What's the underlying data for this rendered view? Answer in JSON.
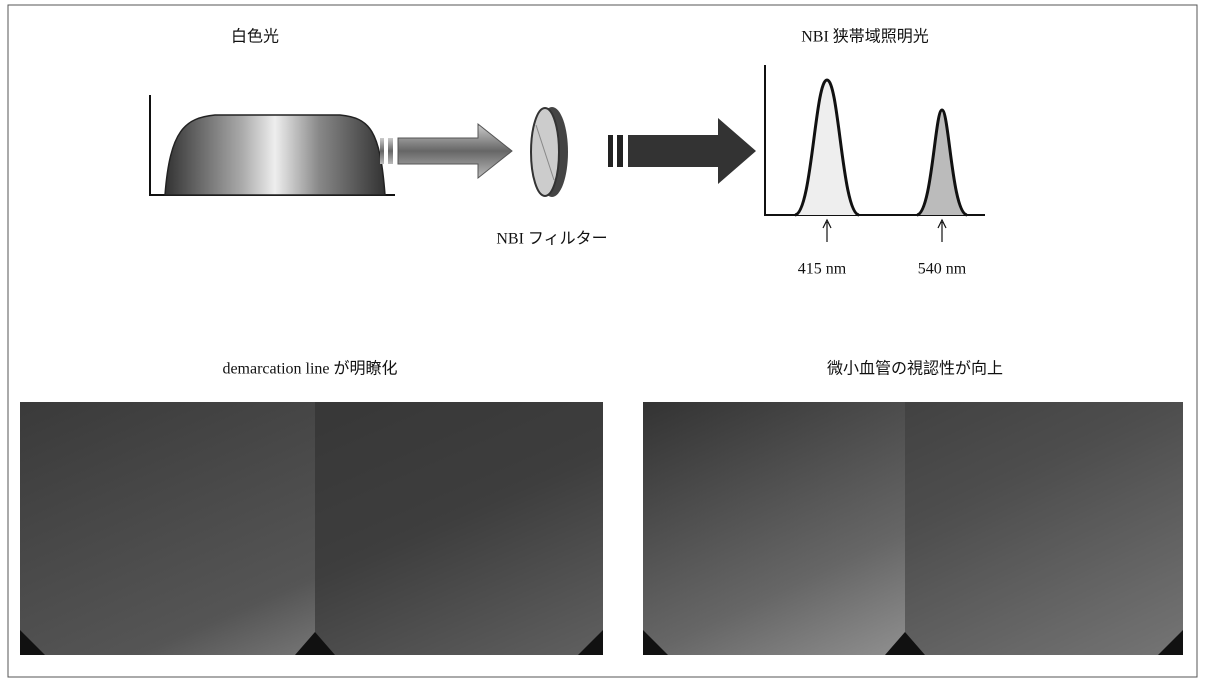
{
  "top": {
    "white_light_label": "白色光",
    "nbi_light_label": "NBI 狭帯域照明光",
    "filter_label": "NBI フィルター",
    "peaks": [
      "415 nm",
      "540 nm"
    ]
  },
  "bottom": {
    "left_caption": "demarcation line が明瞭化",
    "right_caption": "微小血管の視認性が向上"
  }
}
